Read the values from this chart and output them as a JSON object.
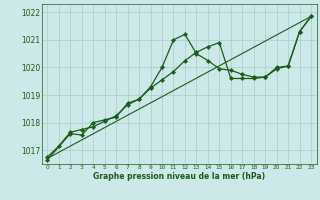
{
  "bg_color": "#cce8e8",
  "grid_color": "#aacccc",
  "line_color": "#1a5c1a",
  "marker_color": "#1a5c1a",
  "xlabel": "Graphe pression niveau de la mer (hPa)",
  "xlabel_color": "#1a5c1a",
  "ylim": [
    1016.5,
    1022.3
  ],
  "xlim": [
    -0.5,
    23.5
  ],
  "yticks": [
    1017,
    1018,
    1019,
    1020,
    1021,
    1022
  ],
  "xticks": [
    0,
    1,
    2,
    3,
    4,
    5,
    6,
    7,
    8,
    9,
    10,
    11,
    12,
    13,
    14,
    15,
    16,
    17,
    18,
    19,
    20,
    21,
    22,
    23
  ],
  "series1_x": [
    0,
    1,
    2,
    3,
    4,
    5,
    6,
    7,
    8,
    9,
    10,
    11,
    12,
    13,
    14,
    15,
    16,
    17,
    18,
    19,
    20,
    21,
    22,
    23
  ],
  "series1_y": [
    1016.75,
    1017.15,
    1017.65,
    1017.75,
    1017.85,
    1018.05,
    1018.25,
    1018.65,
    1018.85,
    1019.25,
    1019.55,
    1019.85,
    1020.25,
    1020.55,
    1020.75,
    1020.9,
    1019.6,
    1019.6,
    1019.6,
    1019.65,
    1020.0,
    1020.05,
    1021.3,
    1021.85
  ],
  "series2_x": [
    0,
    2,
    3,
    4,
    5,
    6,
    7,
    8,
    9,
    10,
    11,
    12,
    13,
    14,
    15,
    16,
    17,
    18,
    19,
    20,
    21,
    22,
    23
  ],
  "series2_y": [
    1016.65,
    1017.6,
    1017.55,
    1018.0,
    1018.1,
    1018.2,
    1018.7,
    1018.85,
    1019.3,
    1020.0,
    1021.0,
    1021.2,
    1020.5,
    1020.25,
    1019.95,
    1019.9,
    1019.75,
    1019.65,
    1019.65,
    1019.95,
    1020.05,
    1021.3,
    1021.85
  ],
  "series3_x": [
    0,
    23
  ],
  "series3_y": [
    1016.7,
    1021.85
  ]
}
